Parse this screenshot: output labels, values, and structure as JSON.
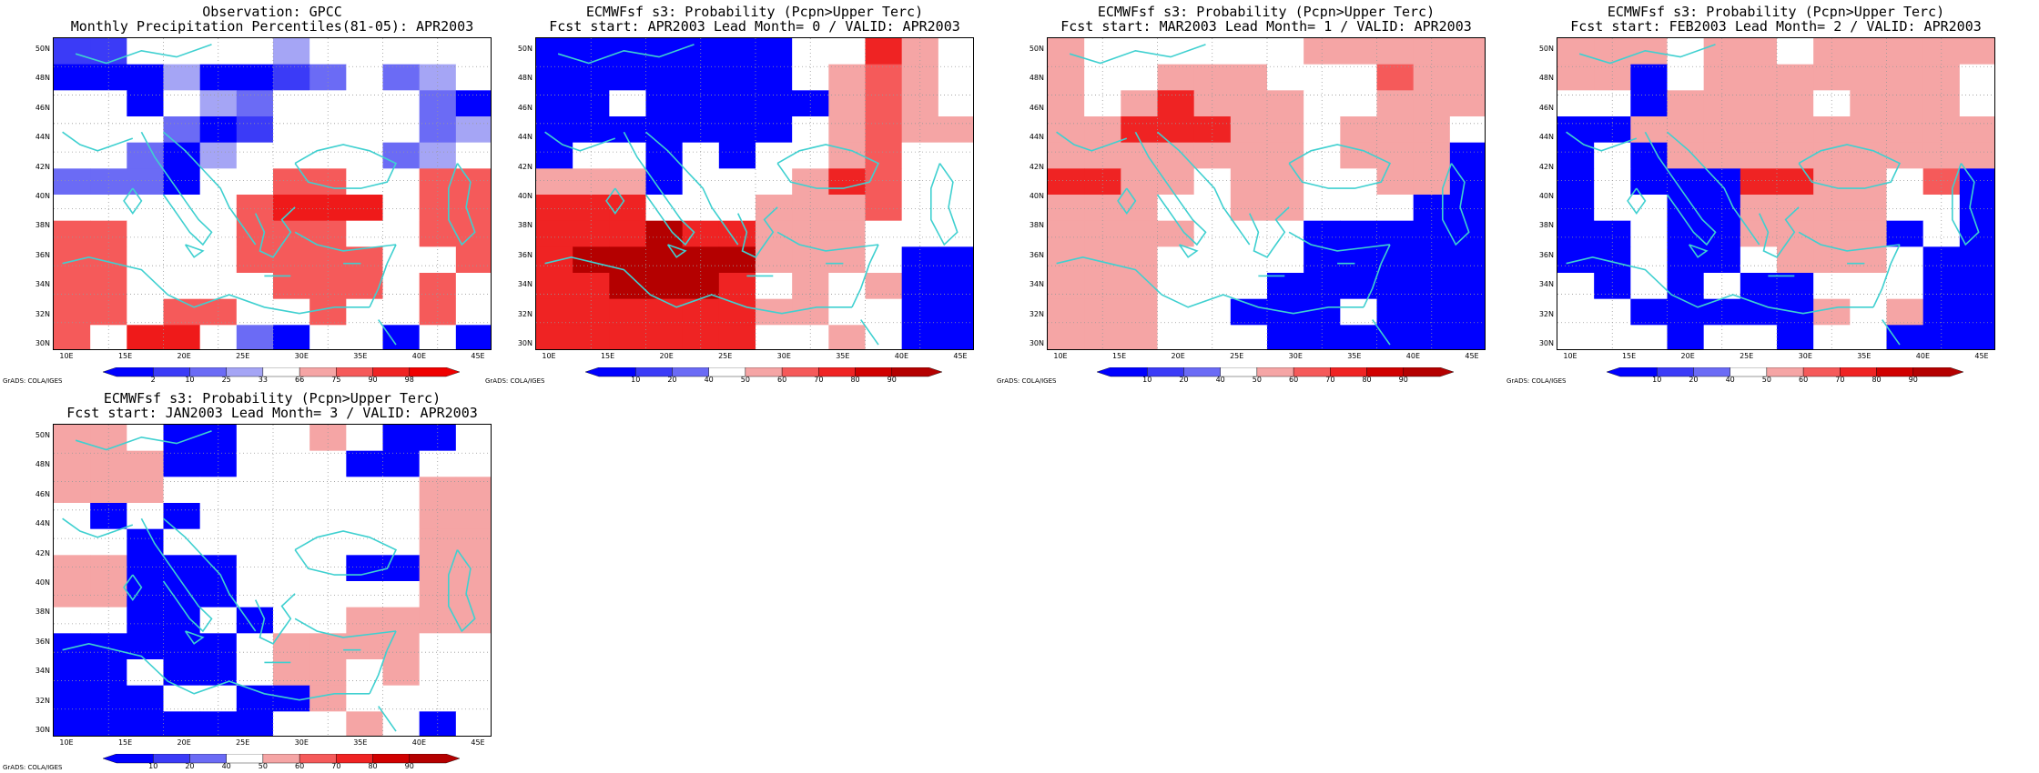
{
  "colors": {
    "dark_blue": "#0000ff",
    "mid_blue": "#4343f7",
    "light_blue": "#a5a5f5",
    "white": "#ffffff",
    "light_red": "#f5a5a5",
    "mid_red": "#f55a5a",
    "red": "#ef2323",
    "dark_red": "#b40000",
    "coast": "#3fd0d0",
    "grid": "#999999"
  },
  "credit": "GrADS: COLA/IGES",
  "axis": {
    "lat_ticks": [
      "30N",
      "32N",
      "34N",
      "36N",
      "38N",
      "40N",
      "42N",
      "44N",
      "46N",
      "48N",
      "50N"
    ],
    "lon_ticks": [
      "10E",
      "15E",
      "20E",
      "25E",
      "30E",
      "35E",
      "40E",
      "45E"
    ]
  },
  "panels": [
    {
      "id": "obs",
      "title1": "Observation: GPCC",
      "title2": "Monthly Precipitation Percentiles(81-05): APR2003",
      "colorbar_labels": [
        "2",
        "10",
        "25",
        "33",
        "66",
        "75",
        "90",
        "98"
      ],
      "colorbar_type": "percentile",
      "grid": [
        "bbwwwwlwww00",
        "aaalaabmwmlw",
        "wwawlmwwwwma",
        "wwwmabwwwwml",
        "wwmalwwwwmlw",
        "mmmawwrrwwrr",
        "wwwwwrooowrr",
        "rrwwwrrrwwrr",
        "rrwwwrrrrwwr",
        "rrwwwwrrrwrw",
        "rrwrrwwrwwrw",
        "rwoowmawwawa"
      ]
    },
    {
      "id": "lead0",
      "title1": "ECMWFsf s3: Probability (Pcpn>Upper Terc)",
      "title2": "Fcst start: APR2003  Lead Month= 0 / VALID: APR2003",
      "colorbar_labels": [
        "10",
        "20",
        "40",
        "50",
        "60",
        "70",
        "80",
        "90"
      ],
      "colorbar_type": "prob",
      "grid": [
        "aaaaaaawwolw",
        "aaaaaaawlrlw",
        "aawaaaaamrlw",
        "aabbaabwmrll",
        "awwbwawwlrww",
        "lllawwwlorww",
        "ooowwwlllrww",
        "ooodoolllwww",
        "odddddmllwaa",
        "oodddowlwlaa",
        "oooooollwwaa",
        "oooooowwlwaa"
      ]
    },
    {
      "id": "lead1",
      "title1": "ECMWFsf s3: Probability (Pcpn>Upper Terc)",
      "title2": "Fcst start: MAR2003  Lead Month= 1 / VALID: APR2003",
      "colorbar_labels": [
        "10",
        "20",
        "40",
        "50",
        "60",
        "70",
        "80",
        "90"
      ],
      "colorbar_type": "prob",
      "grid": [
        "lwwwwwwlllmm",
        "lwwlllwwwrml",
        "lwmolllwwmml",
        "mmooollwlmlw",
        "mmmllllwlmlb",
        "oommwlmwwllb",
        "mmmwwlmwwwab",
        "lmmlwwwaaaab",
        "lllwwwwaaaab",
        "lllwwwaaaaab",
        "lllwwaaawaab",
        "lllwwwaaaaab"
      ]
    },
    {
      "id": "lead2",
      "title1": "ECMWFsf s3: Probability (Pcpn>Upper Terc)",
      "title2": "Fcst start: FEB2003  Lead Month= 2 / VALID: APR2003",
      "colorbar_labels": [
        "10",
        "20",
        "40",
        "50",
        "60",
        "70",
        "80",
        "90"
      ],
      "colorbar_type": "prob",
      "grid": [
        "mmmwllwllmmm",
        "mlawmllllmlw",
        "wwalmllwlmlw",
        "aallmlmlllll",
        "awalllllmlll",
        "awaaaoollwra",
        "awwaallllwwa",
        "aawaallllawa",
        "aawaawlllwaa",
        "wawawaawwwaa",
        "wwaaaaalwlaa",
        "wwwbwwawwaba"
      ]
    },
    {
      "id": "lead3",
      "title1": "ECMWFsf s3: Probability (Pcpn>Upper Terc)",
      "title2": "Fcst start: JAN2003  Lead Month= 3 / VALID: APR2003",
      "colorbar_labels": [
        "10",
        "20",
        "40",
        "50",
        "60",
        "70",
        "80",
        "90"
      ],
      "colorbar_type": "prob",
      "grid": [
        "llwaawwlwaaw",
        "mllaawwwaaww",
        "lllwwwwwwwll",
        "wawawwwwwwll",
        "wwawwwwwwwll",
        "llaaawwwaall",
        "llaaawwwwwll",
        "wwaawawwllll",
        "aaaaawllllww",
        "aawaawllwlww",
        "aaawwaalwwww",
        "aaaaaawwlwaw"
      ]
    }
  ]
}
